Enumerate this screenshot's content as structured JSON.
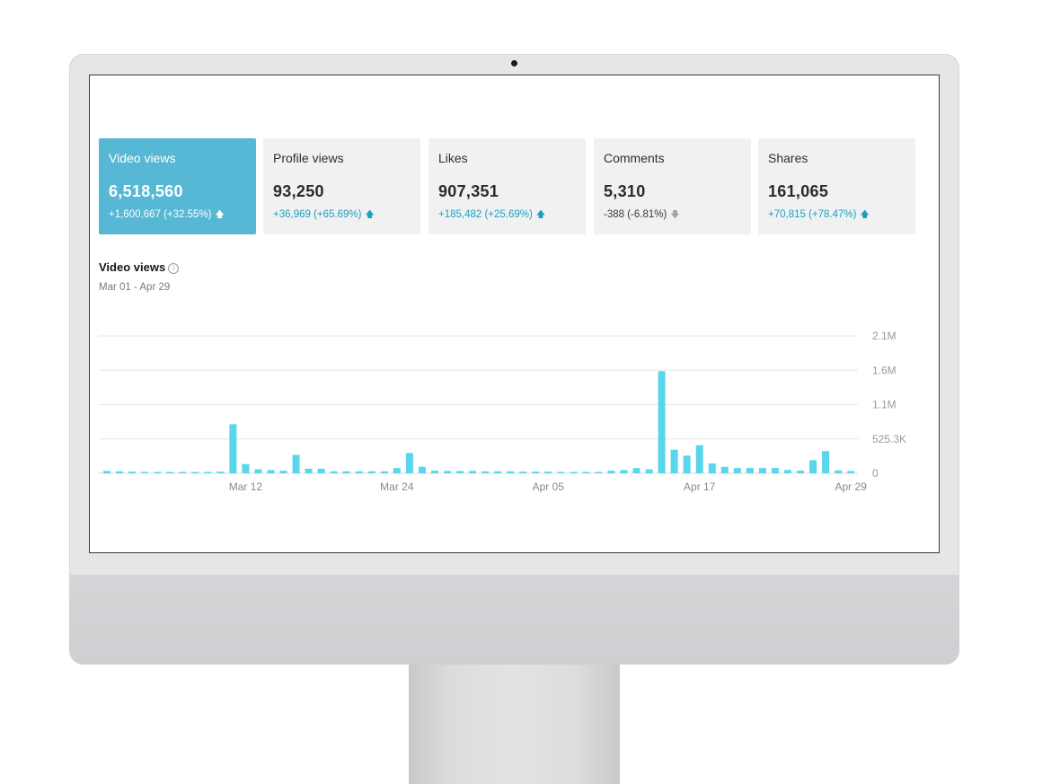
{
  "cards": [
    {
      "label": "Video views",
      "value": "6,518,560",
      "delta": "+1,600,667 (+32.55%)",
      "trend": "up",
      "active": true
    },
    {
      "label": "Profile views",
      "value": "93,250",
      "delta": "+36,969 (+65.69%)",
      "trend": "up",
      "active": false
    },
    {
      "label": "Likes",
      "value": "907,351",
      "delta": "+185,482 (+25.69%)",
      "trend": "up",
      "active": false
    },
    {
      "label": "Comments",
      "value": "5,310",
      "delta": "-388 (-6.81%)",
      "trend": "down",
      "active": false
    },
    {
      "label": "Shares",
      "value": "161,065",
      "delta": "+70,815 (+78.47%)",
      "trend": "up",
      "active": false
    }
  ],
  "chart_header": {
    "title": "Video views",
    "subtitle": "Mar 01 - Apr 29"
  },
  "icons": {
    "info": "info-icon",
    "up": "arrow-up-icon",
    "down": "arrow-down-icon"
  },
  "colors": {
    "accent": "#56b8d4",
    "bar": "#5ad6ec",
    "positive": "#1a9fc4",
    "grid": "#e6e6e6"
  },
  "chart_data": {
    "type": "bar",
    "x": [
      "Mar 01",
      "Mar 02",
      "Mar 03",
      "Mar 04",
      "Mar 05",
      "Mar 06",
      "Mar 07",
      "Mar 08",
      "Mar 09",
      "Mar 10",
      "Mar 11",
      "Mar 12",
      "Mar 13",
      "Mar 14",
      "Mar 15",
      "Mar 16",
      "Mar 17",
      "Mar 18",
      "Mar 19",
      "Mar 20",
      "Mar 21",
      "Mar 22",
      "Mar 23",
      "Mar 24",
      "Mar 25",
      "Mar 26",
      "Mar 27",
      "Mar 28",
      "Mar 29",
      "Mar 30",
      "Mar 31",
      "Apr 01",
      "Apr 02",
      "Apr 03",
      "Apr 04",
      "Apr 05",
      "Apr 06",
      "Apr 07",
      "Apr 08",
      "Apr 09",
      "Apr 10",
      "Apr 11",
      "Apr 12",
      "Apr 13",
      "Apr 14",
      "Apr 15",
      "Apr 16",
      "Apr 17",
      "Apr 18",
      "Apr 19",
      "Apr 20",
      "Apr 21",
      "Apr 22",
      "Apr 23",
      "Apr 24",
      "Apr 25",
      "Apr 26",
      "Apr 27",
      "Apr 28",
      "Apr 29"
    ],
    "values": [
      35000,
      30000,
      25000,
      20000,
      18000,
      15000,
      15000,
      15000,
      15000,
      25000,
      750000,
      140000,
      60000,
      50000,
      40000,
      280000,
      70000,
      70000,
      30000,
      30000,
      30000,
      30000,
      30000,
      80000,
      310000,
      100000,
      40000,
      35000,
      35000,
      35000,
      30000,
      30000,
      30000,
      25000,
      25000,
      25000,
      20000,
      20000,
      20000,
      20000,
      40000,
      50000,
      80000,
      60000,
      1560000,
      360000,
      270000,
      430000,
      150000,
      100000,
      80000,
      80000,
      80000,
      80000,
      50000,
      40000,
      200000,
      340000,
      45000,
      35000
    ],
    "y_tick_labels": [
      "0",
      "525.3K",
      "1.1M",
      "1.6M",
      "2.1M"
    ],
    "y_tick_values": [
      0,
      525300,
      1050600,
      1575900,
      2101200
    ],
    "x_tick_labels": [
      "Mar 12",
      "Mar 24",
      "Apr 05",
      "Apr 17",
      "Apr 29"
    ],
    "x_tick_indices": [
      11,
      23,
      35,
      47,
      59
    ],
    "ylim": [
      0,
      2101200
    ],
    "grid": true
  }
}
